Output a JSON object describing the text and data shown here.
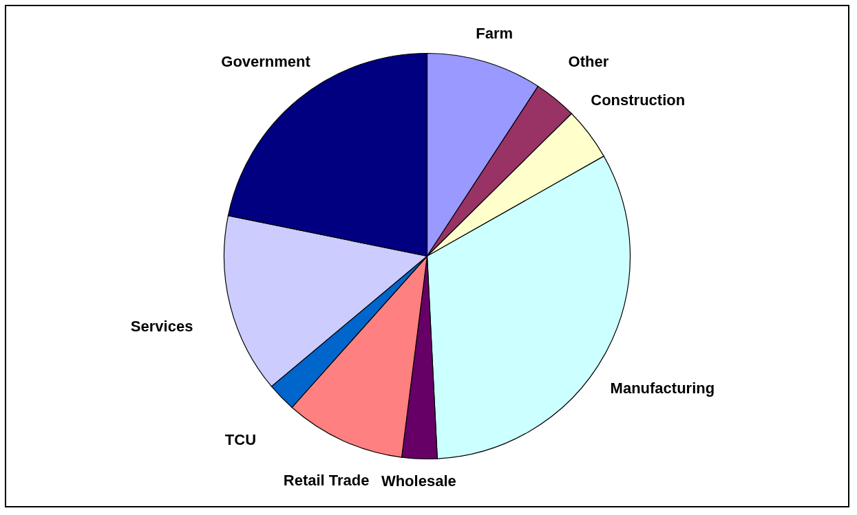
{
  "chart_data": {
    "type": "pie",
    "categories": [
      "Farm",
      "Other",
      "Construction",
      "Manufacturing",
      "Wholesale",
      "Retail Trade",
      "TCU",
      "Services",
      "Government"
    ],
    "values": [
      9.2,
      3.4,
      4.2,
      32.4,
      2.8,
      9.6,
      2.3,
      14.3,
      21.8
    ],
    "colors": [
      "#9999ff",
      "#993366",
      "#ffffcc",
      "#ccffff",
      "#660066",
      "#ff8080",
      "#0066cc",
      "#ccccff",
      "#000080"
    ],
    "legend": false
  }
}
